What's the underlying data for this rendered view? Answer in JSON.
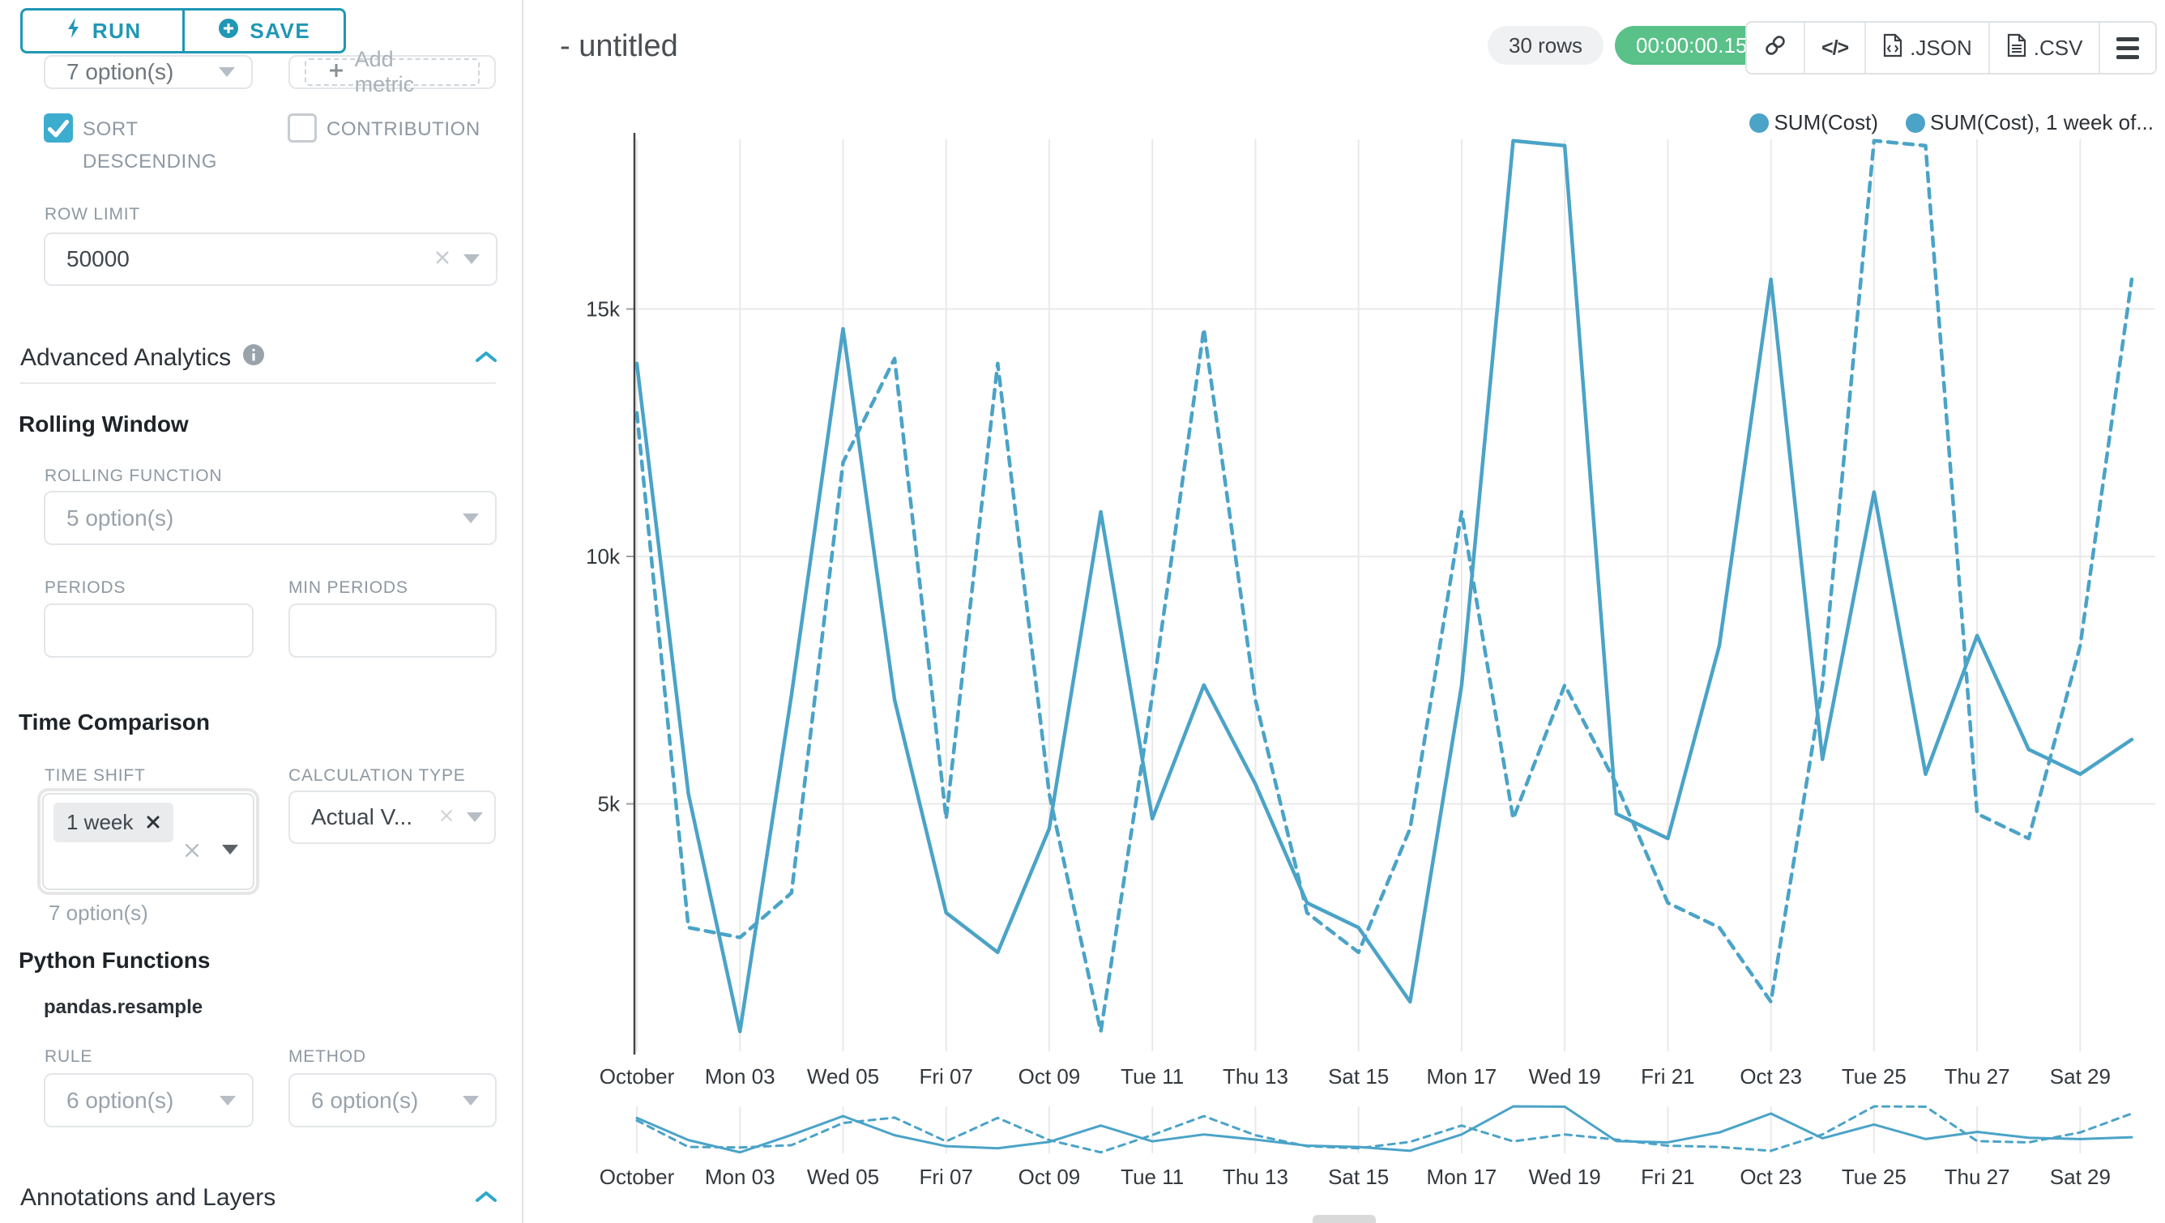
{
  "colors": {
    "accent": "#1f97b5",
    "checkbox": "#3cadce",
    "success_green": "#5ac189",
    "line": "#4ba3c7",
    "grid": "#e9e9e9",
    "axis_line": "#444444"
  },
  "sidebar": {
    "run_label": "RUN",
    "save_label": "SAVE",
    "metrics_select_value": "7 option(s)",
    "add_metric_label": "Add metric",
    "sort_descending_label": "SORT DESCENDING",
    "contribution_label": "CONTRIBUTION",
    "row_limit": {
      "label": "ROW LIMIT",
      "value": "50000"
    },
    "advanced_analytics_title": "Advanced Analytics",
    "rolling_window": {
      "title": "Rolling Window",
      "rolling_function_label": "ROLLING FUNCTION",
      "rolling_function_value": "5 option(s)",
      "periods_label": "PERIODS",
      "min_periods_label": "MIN PERIODS"
    },
    "time_comparison": {
      "title": "Time Comparison",
      "time_shift_label": "TIME SHIFT",
      "time_shift_tag": "1 week",
      "time_shift_hint": "7 option(s)",
      "calculation_type_label": "CALCULATION TYPE",
      "calculation_type_value": "Actual V..."
    },
    "python_functions": {
      "title": "Python Functions",
      "subtitle": "pandas.resample",
      "rule_label": "RULE",
      "rule_value": "6 option(s)",
      "method_label": "METHOD",
      "method_value": "6 option(s)"
    },
    "annotations_title": "Annotations and Layers"
  },
  "header": {
    "title": "- untitled",
    "rows_badge": "30 rows",
    "timer": "00:00:00.15",
    "code_glyph": "</>",
    "json_label": ".JSON",
    "csv_label": ".CSV"
  },
  "chart_data": {
    "type": "line",
    "title": "- untitled",
    "xlabel": "",
    "ylabel": "",
    "ylim": [
      0,
      18700
    ],
    "yticks": [
      5000,
      10000,
      15000
    ],
    "ytick_labels": [
      "5k",
      "10k",
      "15k"
    ],
    "grid": true,
    "legend_position": "top-right",
    "tick_labels": [
      "October",
      "Mon 03",
      "Wed 05",
      "Fri 07",
      "Oct 09",
      "Tue 11",
      "Thu 13",
      "Sat 15",
      "Mon 17",
      "Wed 19",
      "Fri 21",
      "Oct 23",
      "Tue 25",
      "Thu 27",
      "Sat 29"
    ],
    "x": [
      "Oct 01",
      "Oct 02",
      "Oct 03",
      "Oct 04",
      "Oct 05",
      "Oct 06",
      "Oct 07",
      "Oct 08",
      "Oct 09",
      "Oct 10",
      "Oct 11",
      "Oct 12",
      "Oct 13",
      "Oct 14",
      "Oct 15",
      "Oct 16",
      "Oct 17",
      "Oct 18",
      "Oct 19",
      "Oct 20",
      "Oct 21",
      "Oct 22",
      "Oct 23",
      "Oct 24",
      "Oct 25",
      "Oct 26",
      "Oct 27",
      "Oct 28",
      "Oct 29",
      "Oct 30"
    ],
    "series": [
      {
        "name": "SUM(Cost)",
        "style": "solid",
        "values": [
          13900,
          5200,
          400,
          7200,
          14600,
          7100,
          2800,
          2000,
          4500,
          10900,
          4700,
          7400,
          5400,
          3000,
          2500,
          1000,
          7400,
          18400,
          18300,
          4800,
          4300,
          8200,
          15600,
          5900,
          11300,
          5600,
          8400,
          6100,
          5600,
          6300
        ]
      },
      {
        "name": "SUM(Cost), 1 week of...",
        "style": "dashed",
        "values": [
          12900,
          2500,
          2300,
          3200,
          11900,
          14000,
          4700,
          13900,
          5200,
          400,
          7200,
          14600,
          7100,
          2800,
          2000,
          4500,
          10900,
          4700,
          7400,
          5400,
          3000,
          2500,
          1000,
          7400,
          18400,
          18300,
          4800,
          4300,
          8200,
          15600
        ]
      }
    ]
  }
}
